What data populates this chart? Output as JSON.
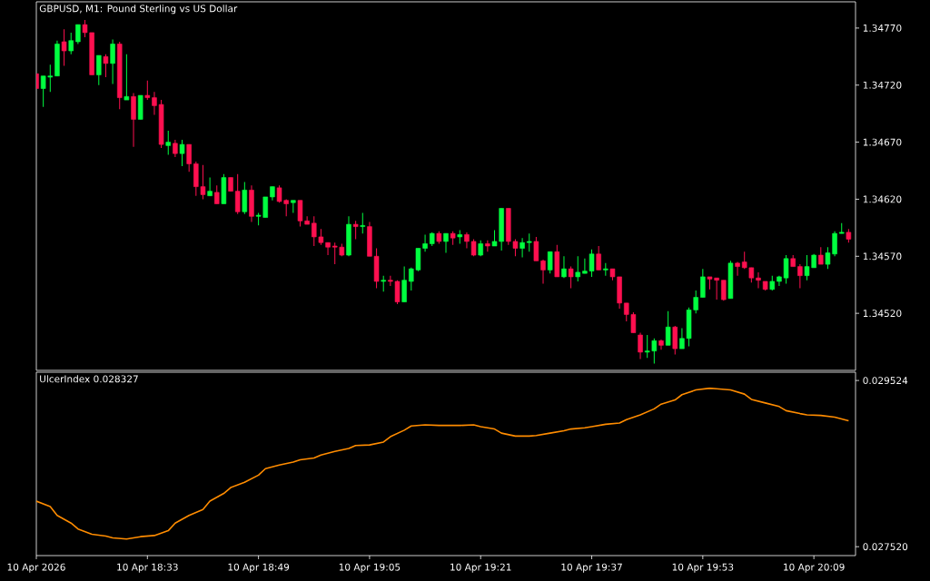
{
  "chart_data": [
    {
      "type": "candlestick",
      "title": "GBPUSD, M1:  Pound Sterling vs US Dollar",
      "x": [
        "2026-04-10T18:17",
        "2026-04-10T18:18",
        "2026-04-10T18:19",
        "2026-04-10T18:20",
        "2026-04-10T18:21",
        "2026-04-10T18:22",
        "2026-04-10T18:23",
        "2026-04-10T18:24",
        "2026-04-10T18:25",
        "2026-04-10T18:26",
        "2026-04-10T18:27",
        "2026-04-10T18:28",
        "2026-04-10T18:29",
        "2026-04-10T18:30",
        "2026-04-10T18:31",
        "2026-04-10T18:32",
        "2026-04-10T18:33",
        "2026-04-10T18:34",
        "2026-04-10T18:35",
        "2026-04-10T18:36",
        "2026-04-10T18:37",
        "2026-04-10T18:38",
        "2026-04-10T18:39",
        "2026-04-10T18:40",
        "2026-04-10T18:41",
        "2026-04-10T18:42",
        "2026-04-10T18:43",
        "2026-04-10T18:44",
        "2026-04-10T18:45",
        "2026-04-10T18:46",
        "2026-04-10T18:47",
        "2026-04-10T18:48",
        "2026-04-10T18:49",
        "2026-04-10T18:50",
        "2026-04-10T18:51",
        "2026-04-10T18:52",
        "2026-04-10T18:53",
        "2026-04-10T18:54",
        "2026-04-10T18:55",
        "2026-04-10T18:56",
        "2026-04-10T18:57",
        "2026-04-10T18:58",
        "2026-04-10T18:59",
        "2026-04-10T19:00",
        "2026-04-10T19:01",
        "2026-04-10T19:02",
        "2026-04-10T19:03",
        "2026-04-10T19:04",
        "2026-04-10T19:05",
        "2026-04-10T19:06",
        "2026-04-10T19:07",
        "2026-04-10T19:08",
        "2026-04-10T19:09",
        "2026-04-10T19:10",
        "2026-04-10T19:11",
        "2026-04-10T19:12",
        "2026-04-10T19:13",
        "2026-04-10T19:14",
        "2026-04-10T19:15",
        "2026-04-10T19:16",
        "2026-04-10T19:17",
        "2026-04-10T19:18",
        "2026-04-10T19:19",
        "2026-04-10T19:20",
        "2026-04-10T19:21",
        "2026-04-10T19:22",
        "2026-04-10T19:23",
        "2026-04-10T19:24",
        "2026-04-10T19:25",
        "2026-04-10T19:26",
        "2026-04-10T19:27",
        "2026-04-10T19:28",
        "2026-04-10T19:29",
        "2026-04-10T19:30",
        "2026-04-10T19:31",
        "2026-04-10T19:32",
        "2026-04-10T19:33",
        "2026-04-10T19:34",
        "2026-04-10T19:35",
        "2026-04-10T19:36",
        "2026-04-10T19:37",
        "2026-04-10T19:38",
        "2026-04-10T19:39",
        "2026-04-10T19:40",
        "2026-04-10T19:41",
        "2026-04-10T19:42",
        "2026-04-10T19:43",
        "2026-04-10T19:44",
        "2026-04-10T19:45",
        "2026-04-10T19:46",
        "2026-04-10T19:47",
        "2026-04-10T19:48",
        "2026-04-10T19:49",
        "2026-04-10T19:50",
        "2026-04-10T19:51",
        "2026-04-10T19:52",
        "2026-04-10T19:53",
        "2026-04-10T19:54",
        "2026-04-10T19:55",
        "2026-04-10T19:56",
        "2026-04-10T19:57",
        "2026-04-10T19:58",
        "2026-04-10T19:59",
        "2026-04-10T20:00",
        "2026-04-10T20:01",
        "2026-04-10T20:02",
        "2026-04-10T20:03",
        "2026-04-10T20:04",
        "2026-04-10T20:05",
        "2026-04-10T20:06",
        "2026-04-10T20:07",
        "2026-04-10T20:08",
        "2026-04-10T20:09",
        "2026-04-10T20:10",
        "2026-04-10T20:11",
        "2026-04-10T20:12",
        "2026-04-10T20:13",
        "2026-04-10T20:14"
      ],
      "ohlc": [
        [
          1.3473,
          1.3473,
          1.34717,
          1.34717
        ],
        [
          1.34717,
          1.34728,
          1.34701,
          1.34728
        ],
        [
          1.34727,
          1.34738,
          1.34714,
          1.34728
        ],
        [
          1.34728,
          1.34759,
          1.34728,
          1.34756
        ],
        [
          1.34758,
          1.34769,
          1.34737,
          1.3475
        ],
        [
          1.3475,
          1.34766,
          1.34747,
          1.34759
        ],
        [
          1.34758,
          1.34773,
          1.34756,
          1.34773
        ],
        [
          1.34773,
          1.34777,
          1.34762,
          1.34766
        ],
        [
          1.34766,
          1.34766,
          1.34729,
          1.34729
        ],
        [
          1.34729,
          1.34746,
          1.3472,
          1.34746
        ],
        [
          1.34745,
          1.34747,
          1.34727,
          1.34739
        ],
        [
          1.34739,
          1.3476,
          1.34721,
          1.34756
        ],
        [
          1.34756,
          1.34758,
          1.34699,
          1.34709
        ],
        [
          1.34707,
          1.34747,
          1.34707,
          1.3471
        ],
        [
          1.3471,
          1.34713,
          1.34666,
          1.3469
        ],
        [
          1.3469,
          1.34711,
          1.3469,
          1.34711
        ],
        [
          1.34711,
          1.34724,
          1.34707,
          1.34709
        ],
        [
          1.34709,
          1.34714,
          1.34694,
          1.34702
        ],
        [
          1.34703,
          1.34707,
          1.34665,
          1.34668
        ],
        [
          1.34667,
          1.3468,
          1.34659,
          1.3467
        ],
        [
          1.34669,
          1.34672,
          1.34657,
          1.3466
        ],
        [
          1.3466,
          1.34672,
          1.34649,
          1.34668
        ],
        [
          1.34668,
          1.34668,
          1.34644,
          1.34651
        ],
        [
          1.34651,
          1.34653,
          1.34623,
          1.34631
        ],
        [
          1.34631,
          1.3465,
          1.3462,
          1.34624
        ],
        [
          1.34623,
          1.34639,
          1.34623,
          1.34627
        ],
        [
          1.34626,
          1.34632,
          1.34616,
          1.34616
        ],
        [
          1.34616,
          1.34642,
          1.34616,
          1.34639
        ],
        [
          1.34639,
          1.34639,
          1.34627,
          1.34627
        ],
        [
          1.34627,
          1.34642,
          1.34607,
          1.34609
        ],
        [
          1.34609,
          1.34635,
          1.34607,
          1.34628
        ],
        [
          1.34628,
          1.34632,
          1.346,
          1.34605
        ],
        [
          1.34605,
          1.34608,
          1.34597,
          1.34606
        ],
        [
          1.34604,
          1.34622,
          1.34604,
          1.34622
        ],
        [
          1.34622,
          1.34631,
          1.34619,
          1.34631
        ],
        [
          1.3463,
          1.34632,
          1.34617,
          1.34618
        ],
        [
          1.34619,
          1.3462,
          1.34605,
          1.34616
        ],
        [
          1.34617,
          1.34619,
          1.34608,
          1.34619
        ],
        [
          1.34619,
          1.34619,
          1.34596,
          1.34601
        ],
        [
          1.34601,
          1.34605,
          1.34598,
          1.34598
        ],
        [
          1.34599,
          1.34605,
          1.34579,
          1.34587
        ],
        [
          1.34587,
          1.34594,
          1.3458,
          1.34582
        ],
        [
          1.34582,
          1.34582,
          1.34571,
          1.34578
        ],
        [
          1.34579,
          1.34582,
          1.34563,
          1.34578
        ],
        [
          1.34578,
          1.34581,
          1.3457,
          1.34571
        ],
        [
          1.34571,
          1.34605,
          1.3457,
          1.34598
        ],
        [
          1.34598,
          1.34601,
          1.34585,
          1.34596
        ],
        [
          1.34596,
          1.34608,
          1.3459,
          1.34597
        ],
        [
          1.34596,
          1.346,
          1.3457,
          1.3457
        ],
        [
          1.3457,
          1.34577,
          1.34542,
          1.34548
        ],
        [
          1.34548,
          1.34553,
          1.34539,
          1.34549
        ],
        [
          1.34549,
          1.34553,
          1.34544,
          1.34548
        ],
        [
          1.34548,
          1.34549,
          1.34528,
          1.3453
        ],
        [
          1.3453,
          1.34561,
          1.3453,
          1.34549
        ],
        [
          1.34548,
          1.3456,
          1.3454,
          1.34559
        ],
        [
          1.34558,
          1.34577,
          1.34557,
          1.34577
        ],
        [
          1.34577,
          1.34589,
          1.34574,
          1.34581
        ],
        [
          1.34581,
          1.34591,
          1.34579,
          1.3459
        ],
        [
          1.3459,
          1.34592,
          1.34581,
          1.34583
        ],
        [
          1.34583,
          1.3459,
          1.34573,
          1.3459
        ],
        [
          1.3459,
          1.34592,
          1.3458,
          1.34586
        ],
        [
          1.34587,
          1.34593,
          1.34581,
          1.34589
        ],
        [
          1.34589,
          1.34591,
          1.34577,
          1.34583
        ],
        [
          1.34583,
          1.34585,
          1.3457,
          1.34571
        ],
        [
          1.34571,
          1.34584,
          1.3457,
          1.34581
        ],
        [
          1.34581,
          1.34584,
          1.34574,
          1.34579
        ],
        [
          1.34579,
          1.34593,
          1.34579,
          1.34583
        ],
        [
          1.34583,
          1.34612,
          1.34575,
          1.34612
        ],
        [
          1.34612,
          1.34612,
          1.3458,
          1.34583
        ],
        [
          1.34583,
          1.34585,
          1.3457,
          1.34577
        ],
        [
          1.34577,
          1.34586,
          1.34569,
          1.34582
        ],
        [
          1.34582,
          1.3459,
          1.34574,
          1.34583
        ],
        [
          1.34583,
          1.34587,
          1.34566,
          1.34566
        ],
        [
          1.34566,
          1.34567,
          1.34546,
          1.34558
        ],
        [
          1.34558,
          1.34574,
          1.34555,
          1.34574
        ],
        [
          1.34574,
          1.3458,
          1.34552,
          1.34552
        ],
        [
          1.34552,
          1.3457,
          1.34551,
          1.34559
        ],
        [
          1.34559,
          1.34561,
          1.34542,
          1.34552
        ],
        [
          1.34552,
          1.3457,
          1.34548,
          1.34556
        ],
        [
          1.34555,
          1.34568,
          1.34555,
          1.34557
        ],
        [
          1.34557,
          1.34576,
          1.34552,
          1.34572
        ],
        [
          1.34572,
          1.34579,
          1.34558,
          1.34558
        ],
        [
          1.34558,
          1.34564,
          1.34553,
          1.34559
        ],
        [
          1.34559,
          1.34559,
          1.34549,
          1.34552
        ],
        [
          1.34552,
          1.34552,
          1.34524,
          1.34529
        ],
        [
          1.34529,
          1.34529,
          1.34513,
          1.34519
        ],
        [
          1.34519,
          1.34521,
          1.34503,
          1.34503
        ],
        [
          1.34501,
          1.34503,
          1.3448,
          1.34486
        ],
        [
          1.34486,
          1.34501,
          1.34481,
          1.34487
        ],
        [
          1.34487,
          1.34498,
          1.34476,
          1.34496
        ],
        [
          1.34496,
          1.34497,
          1.34488,
          1.34492
        ],
        [
          1.34492,
          1.34522,
          1.34492,
          1.34508
        ],
        [
          1.34508,
          1.34509,
          1.34484,
          1.34489
        ],
        [
          1.34489,
          1.34507,
          1.34489,
          1.34498
        ],
        [
          1.34498,
          1.34525,
          1.34491,
          1.34523
        ],
        [
          1.34523,
          1.3454,
          1.3452,
          1.34534
        ],
        [
          1.34534,
          1.34559,
          1.34534,
          1.34552
        ],
        [
          1.34552,
          1.34552,
          1.34541,
          1.3455
        ],
        [
          1.34551,
          1.34551,
          1.34532,
          1.34549
        ],
        [
          1.34549,
          1.34549,
          1.34531,
          1.34532
        ],
        [
          1.34533,
          1.34566,
          1.34533,
          1.34564
        ],
        [
          1.34564,
          1.34565,
          1.34553,
          1.34561
        ],
        [
          1.34565,
          1.34574,
          1.34559,
          1.3456
        ],
        [
          1.3456,
          1.3456,
          1.34547,
          1.34551
        ],
        [
          1.34551,
          1.34556,
          1.34542,
          1.34549
        ],
        [
          1.34548,
          1.34548,
          1.3454,
          1.34541
        ],
        [
          1.34541,
          1.34553,
          1.3454,
          1.34548
        ],
        [
          1.34548,
          1.34553,
          1.34544,
          1.34552
        ],
        [
          1.34551,
          1.34571,
          1.34546,
          1.34568
        ],
        [
          1.34568,
          1.34571,
          1.34561,
          1.34561
        ],
        [
          1.34561,
          1.34563,
          1.34542,
          1.34553
        ],
        [
          1.34553,
          1.34571,
          1.34549,
          1.34561
        ],
        [
          1.3456,
          1.34572,
          1.3456,
          1.34571
        ],
        [
          1.34571,
          1.34578,
          1.34563,
          1.34563
        ],
        [
          1.34563,
          1.34578,
          1.34559,
          1.34573
        ],
        [
          1.34572,
          1.34592,
          1.3457,
          1.3459
        ],
        [
          1.3459,
          1.34599,
          1.3459,
          1.34591
        ],
        [
          1.34591,
          1.34594,
          1.34582,
          1.34585
        ]
      ],
      "colors": [
        "#ff1050",
        "#00ff40",
        "#00ff40",
        "#00ff40",
        "#ff1050",
        "#00ff40",
        "#00ff40",
        "#ff1050",
        "#ff1050",
        "#00ff40",
        "#ff1050",
        "#00ff40",
        "#ff1050",
        "#00ff40",
        "#ff1050",
        "#00ff40",
        "#ff1050",
        "#ff1050",
        "#ff1050",
        "#00ff40",
        "#ff1050",
        "#00ff40",
        "#ff1050",
        "#ff1050",
        "#ff1050",
        "#00ff40",
        "#ff1050",
        "#00ff40",
        "#ff1050",
        "#ff1050",
        "#00ff40",
        "#ff1050",
        "#00ff40",
        "#00ff40",
        "#00ff40",
        "#ff1050",
        "#ff1050",
        "#00ff40",
        "#ff1050",
        "#ff1050",
        "#ff1050",
        "#ff1050",
        "#ff1050",
        "#ff1050",
        "#ff1050",
        "#00ff40",
        "#ff1050",
        "#00ff40",
        "#ff1050",
        "#ff1050",
        "#00ff40",
        "#ff1050",
        "#ff1050",
        "#00ff40",
        "#00ff40",
        "#00ff40",
        "#00ff40",
        "#00ff40",
        "#ff1050",
        "#00ff40",
        "#ff1050",
        "#00ff40",
        "#ff1050",
        "#ff1050",
        "#00ff40",
        "#ff1050",
        "#00ff40",
        "#00ff40",
        "#ff1050",
        "#ff1050",
        "#00ff40",
        "#00ff40",
        "#ff1050",
        "#ff1050",
        "#00ff40",
        "#ff1050",
        "#00ff40",
        "#ff1050",
        "#00ff40",
        "#00ff40",
        "#00ff40",
        "#ff1050",
        "#00ff40",
        "#ff1050",
        "#ff1050",
        "#ff1050",
        "#ff1050",
        "#ff1050",
        "#00ff40",
        "#00ff40",
        "#ff1050",
        "#00ff40",
        "#ff1050",
        "#00ff40",
        "#00ff40",
        "#00ff40",
        "#00ff40",
        "#ff1050",
        "#ff1050",
        "#ff1050",
        "#00ff40",
        "#ff1050",
        "#ff1050",
        "#ff1050",
        "#ff1050",
        "#ff1050",
        "#00ff40",
        "#00ff40",
        "#00ff40",
        "#ff1050",
        "#ff1050",
        "#00ff40",
        "#00ff40",
        "#ff1050",
        "#00ff40",
        "#00ff40",
        "#00ff40",
        "#ff1050"
      ],
      "xlim": [
        "2026-04-10T18:17",
        "2026-04-10T20:15"
      ],
      "ylim": [
        1.3447,
        1.34793
      ],
      "yticks": [
        {
          "value": 1.3452,
          "label": "1.34520"
        },
        {
          "value": 1.3457,
          "label": "1.34570"
        },
        {
          "value": 1.3462,
          "label": "1.34620"
        },
        {
          "value": 1.3467,
          "label": "1.34670"
        },
        {
          "value": 1.3472,
          "label": "1.34720"
        },
        {
          "value": 1.3477,
          "label": "1.34770"
        }
      ],
      "tick_labels": "y"
    },
    {
      "type": "line",
      "title": "UlcerIndex 0.028327",
      "color": "#ff8c00",
      "x": [
        "2026-04-10T18:17",
        "2026-04-10T18:19",
        "2026-04-10T18:20",
        "2026-04-10T18:22",
        "2026-04-10T18:23",
        "2026-04-10T18:25",
        "2026-04-10T18:27",
        "2026-04-10T18:28",
        "2026-04-10T18:30",
        "2026-04-10T18:31",
        "2026-04-10T18:32",
        "2026-04-10T18:34",
        "2026-04-10T18:36",
        "2026-04-10T18:37",
        "2026-04-10T18:39",
        "2026-04-10T18:41",
        "2026-04-10T18:42",
        "2026-04-10T18:44",
        "2026-04-10T18:45",
        "2026-04-10T18:47",
        "2026-04-10T18:49",
        "2026-04-10T18:50",
        "2026-04-10T18:52",
        "2026-04-10T18:54",
        "2026-04-10T18:55",
        "2026-04-10T18:57",
        "2026-04-10T18:58",
        "2026-04-10T19:00",
        "2026-04-10T19:02",
        "2026-04-10T19:03",
        "2026-04-10T19:05",
        "2026-04-10T19:07",
        "2026-04-10T19:08",
        "2026-04-10T19:10",
        "2026-04-10T19:11",
        "2026-04-10T19:13",
        "2026-04-10T19:15",
        "2026-04-10T19:16",
        "2026-04-10T19:18",
        "2026-04-10T19:20",
        "2026-04-10T19:21",
        "2026-04-10T19:23",
        "2026-04-10T19:24",
        "2026-04-10T19:26",
        "2026-04-10T19:28",
        "2026-04-10T19:29",
        "2026-04-10T19:31",
        "2026-04-10T19:33",
        "2026-04-10T19:34",
        "2026-04-10T19:36",
        "2026-04-10T19:37",
        "2026-04-10T19:39",
        "2026-04-10T19:41",
        "2026-04-10T19:42",
        "2026-04-10T19:44",
        "2026-04-10T19:46",
        "2026-04-10T19:47",
        "2026-04-10T19:49",
        "2026-04-10T19:50",
        "2026-04-10T19:52",
        "2026-04-10T19:54",
        "2026-04-10T19:55",
        "2026-04-10T19:57",
        "2026-04-10T19:59",
        "2026-04-10T20:00",
        "2026-04-10T20:02",
        "2026-04-10T20:04",
        "2026-04-10T20:05",
        "2026-04-10T20:07",
        "2026-04-10T20:08",
        "2026-04-10T20:10",
        "2026-04-10T20:12",
        "2026-04-10T20:14"
      ],
      "values": [
        0.028069,
        0.028005,
        0.027898,
        0.027805,
        0.027734,
        0.02767,
        0.027648,
        0.027627,
        0.027613,
        0.027627,
        0.027641,
        0.027655,
        0.027713,
        0.027805,
        0.027898,
        0.027969,
        0.028069,
        0.028162,
        0.028233,
        0.028297,
        0.028383,
        0.028461,
        0.028504,
        0.02854,
        0.028568,
        0.02859,
        0.028625,
        0.028668,
        0.028704,
        0.02874,
        0.028747,
        0.028782,
        0.028846,
        0.028925,
        0.028975,
        0.028989,
        0.028982,
        0.028982,
        0.028982,
        0.028989,
        0.028968,
        0.028939,
        0.028889,
        0.028854,
        0.028854,
        0.028861,
        0.028889,
        0.028918,
        0.028939,
        0.028953,
        0.028968,
        0.028996,
        0.029011,
        0.029053,
        0.02911,
        0.029182,
        0.029239,
        0.029289,
        0.029353,
        0.02941,
        0.029431,
        0.029424,
        0.02941,
        0.02936,
        0.029296,
        0.029253,
        0.02921,
        0.02916,
        0.029125,
        0.02911,
        0.029103,
        0.029082,
        0.029039
      ],
      "xlim": [
        "2026-04-10T18:17",
        "2026-04-10T20:15"
      ],
      "ylim": [
        0.027413,
        0.029624
      ],
      "yticks": [
        0.029524,
        {
          "value": 0.02752,
          "label": "0.027520"
        }
      ],
      "xticks": [
        {
          "value": "2026-04-10T18:17",
          "label": "10 Apr 2026"
        },
        {
          "value": "2026-04-10T18:33",
          "label": "10 Apr 18:33"
        },
        {
          "value": "2026-04-10T18:49",
          "label": "10 Apr 18:49"
        },
        {
          "value": "2026-04-10T19:05",
          "label": "10 Apr 19:05"
        },
        {
          "value": "2026-04-10T19:21",
          "label": "10 Apr 19:21"
        },
        {
          "value": "2026-04-10T19:37",
          "label": "10 Apr 19:37"
        },
        {
          "value": "2026-04-10T19:53",
          "label": "10 Apr 19:53"
        },
        {
          "value": "2026-04-10T20:09",
          "label": "10 Apr 20:09"
        }
      ]
    }
  ]
}
